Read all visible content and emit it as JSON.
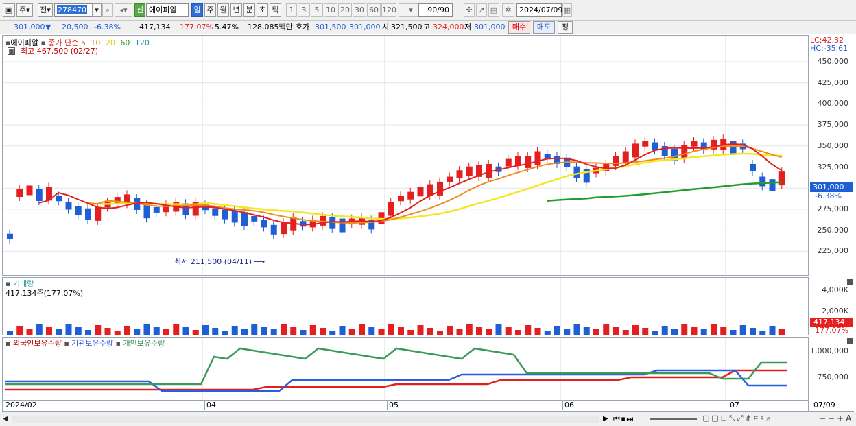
{
  "toolbar": {
    "type_label": "주",
    "prev_label": "전",
    "code_value": "278470",
    "badge_new": "신",
    "stock_name": "에이피알",
    "periods": [
      "일",
      "주",
      "월",
      "년",
      "분",
      "초",
      "틱"
    ],
    "intervals": [
      "1",
      "3",
      "5",
      "10",
      "20",
      "30",
      "60",
      "120"
    ],
    "count_value": "90/90",
    "date_value": "2024/07/09"
  },
  "quote": {
    "price": "301,000",
    "change": "20,500",
    "change_pct": "-6.38%",
    "volume": "417,134",
    "volume_ratio": "177.07%",
    "turnover_pct": "5.47%",
    "amount": "128,085백만",
    "bid_label": "호가",
    "bid1": "301,500",
    "bid2": "301,000",
    "open_label": "시",
    "open_value": "321,500",
    "high_label": "고",
    "high_value": "324,000",
    "low_label": "저",
    "low_value": "301,000",
    "buy_label": "매수",
    "sell_label": "매도",
    "eval_label": "평"
  },
  "price_panel": {
    "name_label": "에이피알",
    "ma_label": "종가 단순 5",
    "ma_periods": [
      "10",
      "20",
      "60",
      "120"
    ],
    "max_label": "최고 467,500 (02/27)",
    "min_label": "최저 211,500 (04/11)",
    "lc_label": "LC:42.32",
    "hc_label": "HC:-35.61",
    "last_price_tag": "301,000",
    "last_pct_tag": "-6.38%",
    "y_ticks": [
      "450,000",
      "425,000",
      "400,000",
      "375,000",
      "350,000",
      "325,000",
      "300,000",
      "275,000",
      "250,000",
      "225,000"
    ]
  },
  "volume_panel": {
    "title": "거래량",
    "info": "417,134주(177.07%)",
    "y_ticks": [
      "4,000K",
      "2,000K"
    ],
    "last_tag": "417,134",
    "last_pct": "177.07%"
  },
  "holding_panel": {
    "foreign_label": "외국인보유수량",
    "inst_label": "기관보유수량",
    "indiv_label": "개인보유수량",
    "y_ticks": [
      "1,000,000",
      "750,000"
    ]
  },
  "x_axis": {
    "labels": [
      "2024/02",
      "04",
      "05",
      "06",
      "07"
    ],
    "end_label": "07/09"
  },
  "colors": {
    "up": "#e41f1f",
    "down": "#1f5fd6",
    "ma5": "#e41f1f",
    "ma10": "#f08c1e",
    "ma20": "#f5e61e",
    "ma60": "#1f9e2a",
    "ma120": "#1f8fb0",
    "foreign": "#e41f1f",
    "inst": "#2a5de0",
    "indiv": "#3a9a5a"
  }
}
